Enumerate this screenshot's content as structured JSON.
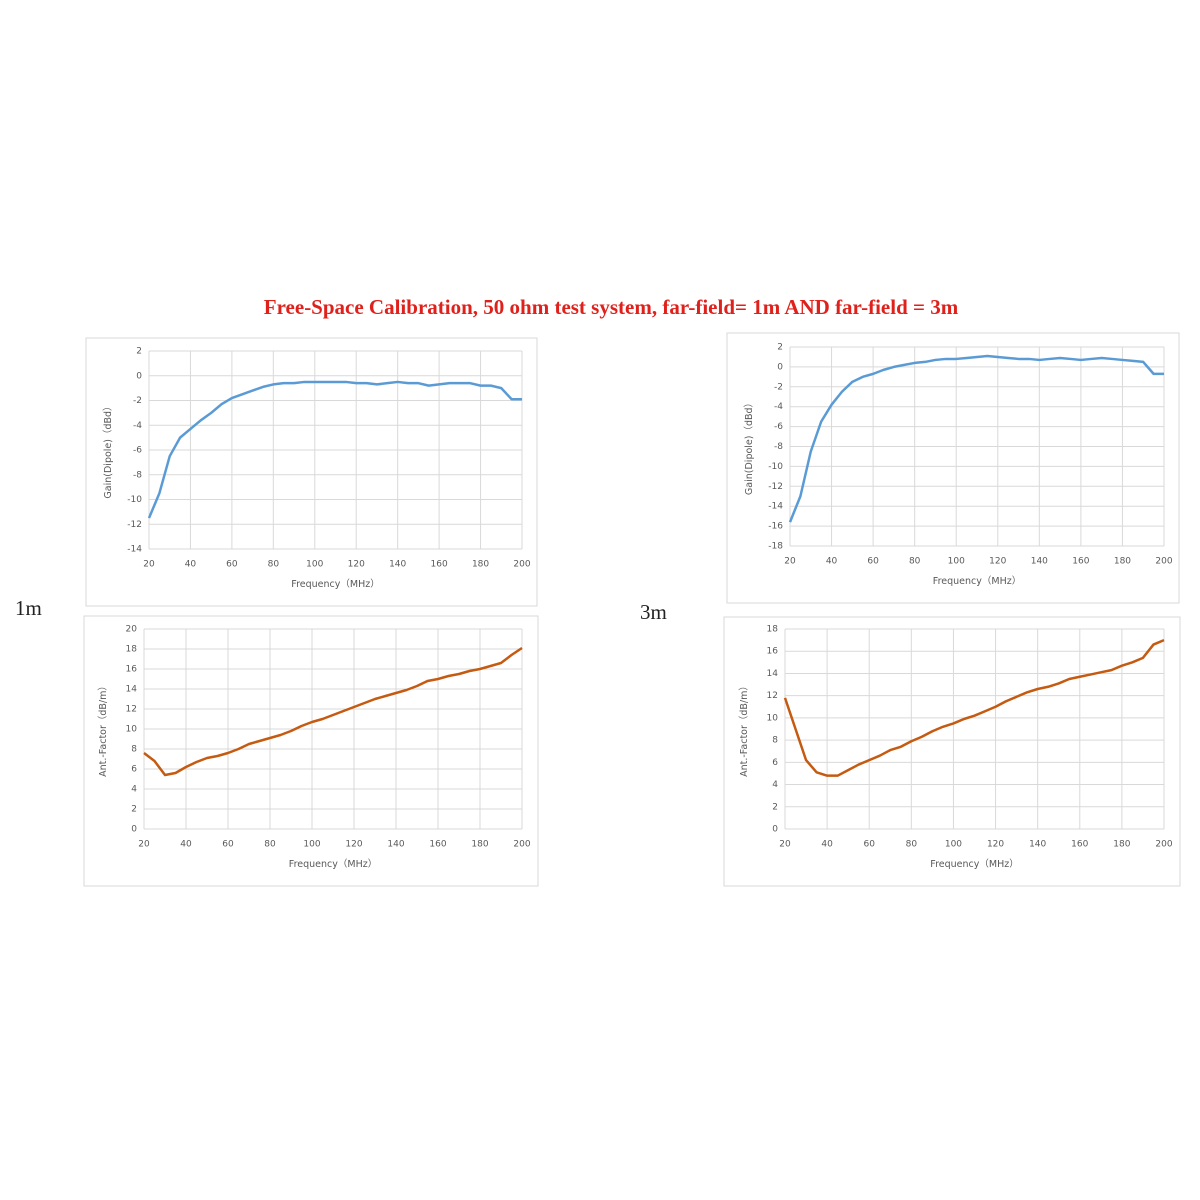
{
  "title": "Free-Space Calibration, 50 ohm  test system,  far-field= 1m  AND  far-field = 3m",
  "labels": [
    "1m",
    "3m"
  ],
  "chart_data": [
    {
      "type": "line",
      "y_label": "Gain(Dipole)（dBd）",
      "x_label": "Frequency（MHz）",
      "x": [
        20,
        25,
        30,
        35,
        40,
        45,
        50,
        55,
        60,
        65,
        70,
        75,
        80,
        85,
        90,
        95,
        100,
        105,
        110,
        115,
        120,
        125,
        130,
        135,
        140,
        145,
        150,
        155,
        160,
        165,
        170,
        175,
        180,
        185,
        190,
        195,
        200
      ],
      "series": [
        {
          "color": "#5b9bd5",
          "values": [
            -11.5,
            -9.5,
            -6.5,
            -5,
            -4.3,
            -3.6,
            -3.0,
            -2.3,
            -1.8,
            -1.5,
            -1.2,
            -0.9,
            -0.7,
            -0.6,
            -0.6,
            -0.5,
            -0.5,
            -0.5,
            -0.5,
            -0.5,
            -0.6,
            -0.6,
            -0.7,
            -0.6,
            -0.5,
            -0.6,
            -0.6,
            -0.8,
            -0.7,
            -0.6,
            -0.6,
            -0.6,
            -0.8,
            -0.8,
            -1.0,
            -1.9,
            -1.9
          ]
        }
      ],
      "xlim": [
        20,
        200
      ],
      "xticks": [
        20,
        40,
        60,
        80,
        100,
        120,
        140,
        160,
        180,
        200
      ],
      "ylim": [
        -14,
        2
      ],
      "yticks": [
        -14,
        -12,
        -10,
        -8,
        -6,
        -4,
        -2,
        0,
        2
      ],
      "grid": true
    },
    {
      "type": "line",
      "y_label": "Ant.-Factor（dB/m）",
      "x_label": "Frequency（MHz）",
      "x": [
        20,
        25,
        30,
        35,
        40,
        45,
        50,
        55,
        60,
        65,
        70,
        75,
        80,
        85,
        90,
        95,
        100,
        105,
        110,
        115,
        120,
        125,
        130,
        135,
        140,
        145,
        150,
        155,
        160,
        165,
        170,
        175,
        180,
        185,
        190,
        195,
        200
      ],
      "series": [
        {
          "color": "#c55a11",
          "values": [
            7.6,
            6.8,
            5.4,
            5.6,
            6.2,
            6.7,
            7.1,
            7.3,
            7.6,
            8.0,
            8.5,
            8.8,
            9.1,
            9.4,
            9.8,
            10.3,
            10.7,
            11.0,
            11.4,
            11.8,
            12.2,
            12.6,
            13.0,
            13.3,
            13.6,
            13.9,
            14.3,
            14.8,
            15.0,
            15.3,
            15.5,
            15.8,
            16.0,
            16.3,
            16.6,
            17.4,
            18.1
          ]
        }
      ],
      "xlim": [
        20,
        200
      ],
      "xticks": [
        20,
        40,
        60,
        80,
        100,
        120,
        140,
        160,
        180,
        200
      ],
      "ylim": [
        0,
        20
      ],
      "yticks": [
        0,
        2,
        4,
        6,
        8,
        10,
        12,
        14,
        16,
        18,
        20
      ],
      "grid": true
    },
    {
      "type": "line",
      "y_label": "Gain(Dipole)（dBd）",
      "x_label": "Frequency（MHz）",
      "x": [
        20,
        25,
        30,
        35,
        40,
        45,
        50,
        55,
        60,
        65,
        70,
        75,
        80,
        85,
        90,
        95,
        100,
        105,
        110,
        115,
        120,
        125,
        130,
        135,
        140,
        145,
        150,
        155,
        160,
        165,
        170,
        175,
        180,
        185,
        190,
        195,
        200
      ],
      "series": [
        {
          "color": "#5b9bd5",
          "values": [
            -15.6,
            -13,
            -8.5,
            -5.5,
            -3.8,
            -2.5,
            -1.5,
            -1.0,
            -0.7,
            -0.3,
            0,
            0.2,
            0.4,
            0.5,
            0.7,
            0.8,
            0.8,
            0.9,
            1.0,
            1.1,
            1.0,
            0.9,
            0.8,
            0.8,
            0.7,
            0.8,
            0.9,
            0.8,
            0.7,
            0.8,
            0.9,
            0.8,
            0.7,
            0.6,
            0.5,
            -0.7,
            -0.7
          ]
        }
      ],
      "xlim": [
        20,
        200
      ],
      "xticks": [
        20,
        40,
        60,
        80,
        100,
        120,
        140,
        160,
        180,
        200
      ],
      "ylim": [
        -18,
        2
      ],
      "yticks": [
        -18,
        -16,
        -14,
        -12,
        -10,
        -8,
        -6,
        -4,
        -2,
        0,
        2
      ],
      "grid": true
    },
    {
      "type": "line",
      "y_label": "Ant.-Factor（dB/m）",
      "x_label": "Frequency（MHz）",
      "x": [
        20,
        25,
        30,
        35,
        40,
        45,
        50,
        55,
        60,
        65,
        70,
        75,
        80,
        85,
        90,
        95,
        100,
        105,
        110,
        115,
        120,
        125,
        130,
        135,
        140,
        145,
        150,
        155,
        160,
        165,
        170,
        175,
        180,
        185,
        190,
        195,
        200
      ],
      "series": [
        {
          "color": "#c55a11",
          "values": [
            11.8,
            9,
            6.2,
            5.1,
            4.8,
            4.8,
            5.3,
            5.8,
            6.2,
            6.6,
            7.1,
            7.4,
            7.9,
            8.3,
            8.8,
            9.2,
            9.5,
            9.9,
            10.2,
            10.6,
            11.0,
            11.5,
            11.9,
            12.3,
            12.6,
            12.8,
            13.1,
            13.5,
            13.7,
            13.9,
            14.1,
            14.3,
            14.7,
            15.0,
            15.4,
            16.6,
            17.0
          ]
        }
      ],
      "xlim": [
        20,
        200
      ],
      "xticks": [
        20,
        40,
        60,
        80,
        100,
        120,
        140,
        160,
        180,
        200
      ],
      "ylim": [
        0,
        18
      ],
      "yticks": [
        0,
        2,
        4,
        6,
        8,
        10,
        12,
        14,
        16,
        18
      ],
      "grid": true
    }
  ]
}
